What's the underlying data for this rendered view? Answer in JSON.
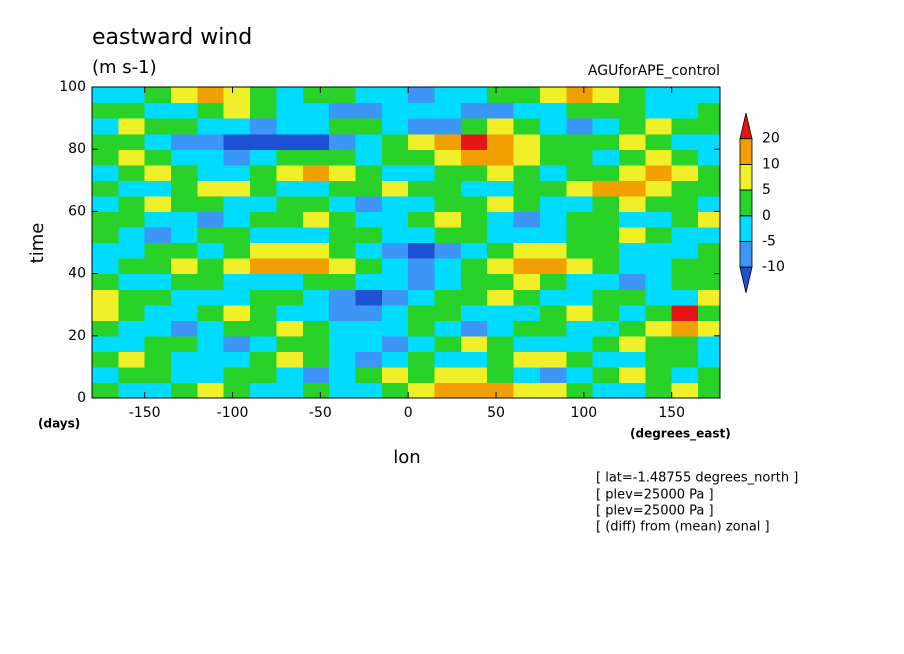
{
  "chart_data": {
    "type": "contour",
    "title": "eastward wind",
    "units": "(m s-1)",
    "experiment": "AGUforAPE_control",
    "xlabel": "lon",
    "ylabel": "time",
    "xunits": "(degrees_east)",
    "yunits": "(days)",
    "notes": [
      "[ lat=-1.48755 degrees_north ]",
      "[ plev=25000 Pa ]",
      "[ plev=25000 Pa ]",
      "[ (diff) from (mean) zonal ]"
    ],
    "xlim": [
      -180,
      177.5
    ],
    "ylim": [
      0,
      100
    ],
    "xticks": [
      -150,
      -100,
      -50,
      0,
      50,
      100,
      150
    ],
    "yticks": [
      0,
      20,
      40,
      60,
      80,
      100
    ],
    "levels": [
      -10,
      -5,
      0,
      5,
      10,
      20
    ],
    "colors": [
      "#1e50d2",
      "#3c96f5",
      "#00dcff",
      "#28d228",
      "#f0f028",
      "#f0a000",
      "#e61414"
    ],
    "x": [
      -172.5,
      -157.5,
      -142.5,
      -127.5,
      -112.5,
      -97.5,
      -82.5,
      -67.5,
      -52.5,
      -37.5,
      -22.5,
      -7.5,
      7.5,
      22.5,
      37.5,
      52.5,
      67.5,
      82.5,
      97.5,
      112.5,
      127.5,
      142.5,
      157.5,
      172.5
    ],
    "y": [
      2.5,
      7.5,
      12.5,
      17.5,
      22.5,
      27.5,
      32.5,
      37.5,
      42.5,
      47.5,
      52.5,
      57.5,
      62.5,
      67.5,
      72.5,
      77.5,
      82.5,
      87.5,
      92.5,
      97.5
    ],
    "z": [
      [
        2,
        -2,
        -3,
        2,
        6,
        2,
        -1,
        -2,
        3,
        -2,
        -3,
        2,
        6,
        12,
        12,
        14,
        8,
        6,
        3,
        -3,
        -2,
        2,
        7,
        3
      ],
      [
        -3,
        2,
        3,
        -2,
        -1,
        3,
        2,
        -3,
        -6,
        -2,
        3,
        7,
        3,
        6,
        8,
        3,
        -3,
        -6,
        -3,
        2,
        6,
        3,
        -2,
        2
      ],
      [
        2,
        6,
        3,
        -2,
        -3,
        -1,
        3,
        6,
        2,
        -3,
        -7,
        -3,
        2,
        -2,
        -3,
        2,
        7,
        8,
        3,
        -2,
        -3,
        2,
        3,
        -1
      ],
      [
        -2,
        -3,
        2,
        3,
        -1,
        -6,
        -3,
        2,
        3,
        -1,
        -2,
        -7,
        -3,
        2,
        6,
        3,
        -2,
        -3,
        -1,
        2,
        6,
        3,
        2,
        -3
      ],
      [
        3,
        -2,
        -3,
        -6,
        -2,
        2,
        3,
        7,
        3,
        -2,
        -3,
        -1,
        3,
        -2,
        -6,
        -3,
        2,
        3,
        -1,
        -3,
        2,
        7,
        11,
        6
      ],
      [
        7,
        3,
        -2,
        -3,
        2,
        6,
        3,
        -2,
        -3,
        -6,
        -7,
        -3,
        2,
        3,
        -2,
        -3,
        -1,
        2,
        6,
        3,
        -2,
        3,
        22,
        3
      ],
      [
        6,
        2,
        3,
        -2,
        -3,
        -1,
        2,
        3,
        -2,
        -7,
        -12,
        -6,
        -2,
        2,
        3,
        6,
        3,
        -2,
        -3,
        2,
        3,
        -2,
        -3,
        6
      ],
      [
        2,
        -3,
        -2,
        3,
        2,
        -2,
        -3,
        -1,
        2,
        3,
        -2,
        -3,
        -6,
        -2,
        2,
        3,
        7,
        3,
        -2,
        -3,
        -6,
        -2,
        3,
        2
      ],
      [
        -2,
        2,
        3,
        6,
        3,
        7,
        11,
        12,
        12,
        6,
        2,
        -3,
        -6,
        -3,
        2,
        6,
        12,
        11,
        7,
        3,
        -2,
        -3,
        2,
        3
      ],
      [
        -3,
        -2,
        3,
        2,
        -2,
        3,
        6,
        8,
        7,
        3,
        -2,
        -7,
        -12,
        -6,
        -2,
        3,
        7,
        6,
        3,
        2,
        -1,
        -3,
        -2,
        2
      ],
      [
        2,
        -3,
        -6,
        -2,
        3,
        2,
        -2,
        -3,
        -1,
        2,
        3,
        -2,
        -3,
        2,
        3,
        -2,
        -3,
        -1,
        2,
        3,
        6,
        2,
        -2,
        -3
      ],
      [
        3,
        2,
        -2,
        -3,
        -6,
        -3,
        2,
        3,
        6,
        3,
        -2,
        -3,
        2,
        6,
        3,
        -2,
        -6,
        -3,
        2,
        3,
        -2,
        -3,
        2,
        6
      ],
      [
        -2,
        3,
        6,
        3,
        2,
        -2,
        -3,
        2,
        3,
        -2,
        -6,
        -3,
        -2,
        2,
        3,
        6,
        3,
        -2,
        -3,
        2,
        6,
        3,
        2,
        -2
      ],
      [
        2,
        -2,
        -3,
        2,
        6,
        7,
        3,
        -2,
        -3,
        2,
        3,
        6,
        3,
        2,
        -2,
        -3,
        2,
        3,
        6,
        12,
        11,
        7,
        3,
        2
      ],
      [
        -3,
        2,
        6,
        3,
        -2,
        -3,
        2,
        7,
        11,
        7,
        3,
        -2,
        -3,
        2,
        3,
        6,
        3,
        -2,
        2,
        3,
        7,
        12,
        6,
        3
      ],
      [
        3,
        6,
        2,
        -2,
        -3,
        -6,
        -3,
        2,
        3,
        2,
        -2,
        2,
        3,
        6,
        12,
        11,
        7,
        3,
        2,
        -2,
        3,
        6,
        3,
        -2
      ],
      [
        2,
        3,
        -2,
        -6,
        -7,
        -12,
        -12,
        -12,
        -11,
        -7,
        -3,
        2,
        6,
        12,
        22,
        12,
        7,
        3,
        2,
        3,
        6,
        2,
        -2,
        -3
      ],
      [
        -2,
        6,
        3,
        2,
        -2,
        -3,
        -6,
        -3,
        -2,
        2,
        3,
        -2,
        -6,
        -7,
        3,
        6,
        2,
        -3,
        -6,
        -3,
        2,
        6,
        3,
        2
      ],
      [
        3,
        2,
        -2,
        -3,
        2,
        6,
        3,
        -2,
        -3,
        -6,
        -7,
        -3,
        -2,
        -3,
        -6,
        -7,
        -3,
        -2,
        2,
        3,
        2,
        -2,
        -3,
        2
      ],
      [
        -2,
        -3,
        2,
        6,
        12,
        6,
        3,
        -2,
        2,
        3,
        -2,
        -3,
        -6,
        -3,
        -2,
        2,
        3,
        6,
        12,
        7,
        3,
        -2,
        -3,
        -2
      ]
    ]
  }
}
